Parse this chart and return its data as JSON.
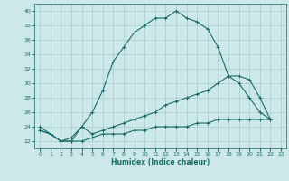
{
  "xlabel": "Humidex (Indice chaleur)",
  "xlim": [
    -0.5,
    23.5
  ],
  "ylim": [
    21,
    41
  ],
  "yticks": [
    22,
    24,
    26,
    28,
    30,
    32,
    34,
    36,
    38,
    40
  ],
  "xticks": [
    0,
    1,
    2,
    3,
    4,
    5,
    6,
    7,
    8,
    9,
    10,
    11,
    12,
    13,
    14,
    15,
    16,
    17,
    18,
    19,
    20,
    21,
    22,
    23
  ],
  "bg_color": "#cce8e8",
  "line_color": "#1a6b6b",
  "grid_color": "#a8cccc",
  "lines": [
    {
      "x": [
        0,
        1,
        2,
        3,
        4,
        5,
        6,
        7,
        8,
        9,
        10,
        11,
        12,
        13,
        14,
        15,
        16,
        17,
        18,
        19,
        20,
        21,
        22
      ],
      "y": [
        24,
        23,
        22,
        22.5,
        24,
        26,
        29,
        33,
        35,
        37,
        38,
        39,
        39,
        40,
        39,
        38.5,
        37.5,
        35,
        31,
        30,
        28,
        26,
        25
      ]
    },
    {
      "x": [
        0,
        1,
        2,
        3,
        4,
        5,
        6,
        7,
        8,
        9,
        10,
        11,
        12,
        13,
        14,
        15,
        16,
        17,
        18,
        19,
        20,
        21,
        22
      ],
      "y": [
        23.5,
        23,
        22,
        22,
        24,
        23,
        23.5,
        24,
        24.5,
        25,
        25.5,
        26,
        27,
        27.5,
        28,
        28.5,
        29,
        30,
        31,
        31,
        30.5,
        28,
        25
      ]
    },
    {
      "x": [
        0,
        1,
        2,
        3,
        4,
        5,
        6,
        7,
        8,
        9,
        10,
        11,
        12,
        13,
        14,
        15,
        16,
        17,
        18,
        19,
        20,
        21,
        22
      ],
      "y": [
        23.5,
        23,
        22,
        22,
        22,
        22.5,
        23,
        23,
        23,
        23.5,
        23.5,
        24,
        24,
        24,
        24,
        24.5,
        24.5,
        25,
        25,
        25,
        25,
        25,
        25
      ]
    }
  ]
}
